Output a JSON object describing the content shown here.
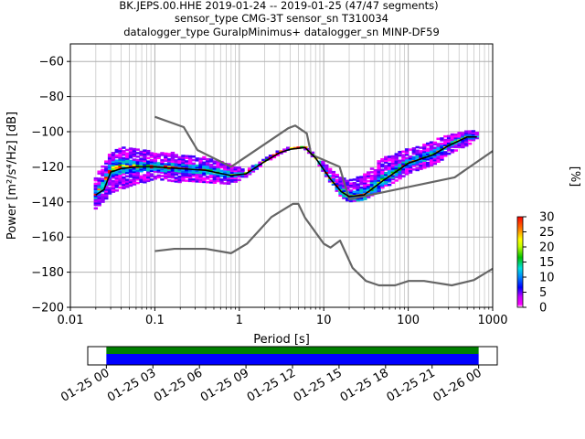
{
  "chart_data": {
    "type": "psd-probability",
    "title": {
      "line1": "BK.JEPS.00.HHE   2019-01-24 -- 2019-01-25  (47/47 segments)",
      "line2": "sensor_type CMG-3T sensor_sn T310034",
      "line3": "datalogger_type GuralpMinimus+ datalogger_sn MINP-DF59"
    },
    "xaxis": {
      "scale": "log",
      "range": [
        0.01,
        1000
      ],
      "ticks": [
        0.01,
        0.1,
        1,
        10,
        100,
        1000
      ],
      "tick_labels": [
        "0.01",
        "0.1",
        "1",
        "10",
        "100",
        "1000"
      ],
      "label": "Period [s]"
    },
    "yaxis": {
      "range": [
        -200,
        -50
      ],
      "ticks": [
        -200,
        -180,
        -160,
        -140,
        -120,
        -100,
        -80,
        -60
      ],
      "tick_labels": [
        "−200",
        "−180",
        "−160",
        "−140",
        "−120",
        "−100",
        "−80",
        "−60"
      ],
      "label": "Power [m²/s⁴/Hz] [dB]"
    },
    "grid": true,
    "colorbar": {
      "label": "[%]",
      "range": [
        0,
        30
      ],
      "ticks": [
        0,
        5,
        10,
        15,
        20,
        25,
        30
      ],
      "tick_labels": [
        "0",
        "5",
        "10",
        "15",
        "20",
        "25",
        "30"
      ],
      "colormap": "pqlx"
    },
    "series": [
      {
        "role": "high-noise-model",
        "color": "#666666",
        "points": [
          [
            0.1,
            -91.5
          ],
          [
            0.22,
            -97.4
          ],
          [
            0.32,
            -110.5
          ],
          [
            0.8,
            -120
          ],
          [
            3.8,
            -98
          ],
          [
            4.6,
            -96.5
          ],
          [
            6.3,
            -101
          ],
          [
            7.1,
            -113
          ],
          [
            15.4,
            -120
          ],
          [
            20,
            -138.5
          ],
          [
            354.8,
            -126
          ],
          [
            1000,
            -111
          ]
        ]
      },
      {
        "role": "low-noise-model",
        "color": "#666666",
        "points": [
          [
            0.1,
            -168
          ],
          [
            0.17,
            -166.7
          ],
          [
            0.4,
            -166.7
          ],
          [
            0.8,
            -169.2
          ],
          [
            1.24,
            -163.7
          ],
          [
            2.4,
            -148.6
          ],
          [
            4.3,
            -141.1
          ],
          [
            5,
            -141.1
          ],
          [
            6,
            -149
          ],
          [
            10,
            -163.8
          ],
          [
            12,
            -166
          ],
          [
            15.6,
            -162
          ],
          [
            21.9,
            -177.5
          ],
          [
            31.6,
            -185
          ],
          [
            45,
            -187.5
          ],
          [
            70,
            -187.5
          ],
          [
            101,
            -185
          ],
          [
            154,
            -185
          ],
          [
            328,
            -187.5
          ],
          [
            600,
            -184.5
          ],
          [
            1000,
            -178
          ]
        ]
      },
      {
        "role": "mode",
        "color": "#000000",
        "points": [
          [
            0.02,
            -136
          ],
          [
            0.025,
            -133
          ],
          [
            0.03,
            -123
          ],
          [
            0.04,
            -121
          ],
          [
            0.06,
            -120
          ],
          [
            0.1,
            -120
          ],
          [
            0.2,
            -121
          ],
          [
            0.4,
            -122
          ],
          [
            0.8,
            -125
          ],
          [
            1.2,
            -124
          ],
          [
            2,
            -117
          ],
          [
            3,
            -112
          ],
          [
            4,
            -110
          ],
          [
            6,
            -109
          ],
          [
            8,
            -115
          ],
          [
            12,
            -127
          ],
          [
            16,
            -134
          ],
          [
            20,
            -137
          ],
          [
            30,
            -136
          ],
          [
            50,
            -128
          ],
          [
            100,
            -118
          ],
          [
            200,
            -113
          ],
          [
            300,
            -108
          ],
          [
            500,
            -103
          ],
          [
            650,
            -103
          ]
        ]
      }
    ],
    "density_band": {
      "center": [
        [
          0.02,
          -136
        ],
        [
          0.025,
          -130
        ],
        [
          0.03,
          -122
        ],
        [
          0.04,
          -120
        ],
        [
          0.06,
          -120
        ],
        [
          0.1,
          -120
        ],
        [
          0.2,
          -121
        ],
        [
          0.4,
          -122
        ],
        [
          0.8,
          -125
        ],
        [
          1.2,
          -124
        ],
        [
          2,
          -117
        ],
        [
          3,
          -112
        ],
        [
          4,
          -110
        ],
        [
          6,
          -109
        ],
        [
          8,
          -115
        ],
        [
          12,
          -127
        ],
        [
          16,
          -134
        ],
        [
          20,
          -137
        ],
        [
          30,
          -136
        ],
        [
          50,
          -128
        ],
        [
          100,
          -118
        ],
        [
          200,
          -113
        ],
        [
          300,
          -108
        ],
        [
          500,
          -103
        ],
        [
          650,
          -103
        ]
      ],
      "upper": [
        [
          0.02,
          -126
        ],
        [
          0.03,
          -112
        ],
        [
          0.04,
          -109
        ],
        [
          0.1,
          -111
        ],
        [
          0.2,
          -113
        ],
        [
          0.4,
          -115
        ],
        [
          0.8,
          -119
        ],
        [
          1.2,
          -122
        ],
        [
          2,
          -116
        ],
        [
          3,
          -111
        ],
        [
          4,
          -109
        ],
        [
          6,
          -108
        ],
        [
          8,
          -113
        ],
        [
          12,
          -121
        ],
        [
          16,
          -126
        ],
        [
          20,
          -128
        ],
        [
          30,
          -125
        ],
        [
          50,
          -115
        ],
        [
          100,
          -110
        ],
        [
          200,
          -105
        ],
        [
          300,
          -102
        ],
        [
          500,
          -100
        ],
        [
          650,
          -100
        ]
      ],
      "lower": [
        [
          0.02,
          -144
        ],
        [
          0.03,
          -136
        ],
        [
          0.04,
          -134
        ],
        [
          0.1,
          -127
        ],
        [
          0.2,
          -129
        ],
        [
          0.4,
          -130
        ],
        [
          0.8,
          -131
        ],
        [
          1.2,
          -127
        ],
        [
          2,
          -119
        ],
        [
          3,
          -114
        ],
        [
          4,
          -111
        ],
        [
          6,
          -110
        ],
        [
          8,
          -116
        ],
        [
          12,
          -129
        ],
        [
          16,
          -137
        ],
        [
          20,
          -140
        ],
        [
          30,
          -139
        ],
        [
          50,
          -133
        ],
        [
          100,
          -124
        ],
        [
          200,
          -119
        ],
        [
          300,
          -114
        ],
        [
          500,
          -109
        ],
        [
          650,
          -106
        ]
      ]
    }
  },
  "timeline": {
    "ticks": [
      "01-25 00",
      "01-25 03",
      "01-25 06",
      "01-25 09",
      "01-25 12",
      "01-25 15",
      "01-25 18",
      "01-25 21",
      "01-26 00"
    ],
    "range_hours": [
      -1.2,
      25.2
    ],
    "coverage_hours": [
      0,
      24
    ],
    "top_color": "#008000",
    "bottom_color": "#0000ff"
  }
}
